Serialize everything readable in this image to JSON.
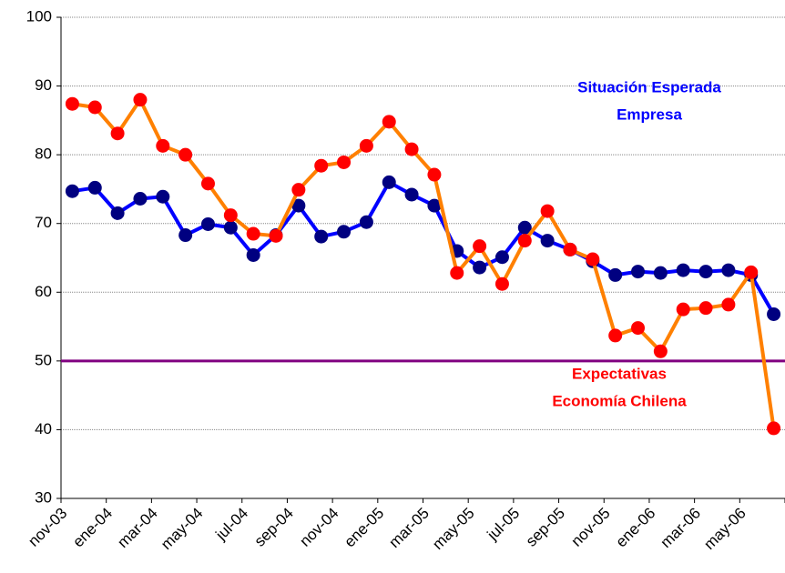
{
  "chart_data": {
    "type": "line",
    "categories": [
      "nov-03",
      null,
      "ene-04",
      null,
      "mar-04",
      null,
      "may-04",
      null,
      "jul-04",
      null,
      "sep-04",
      null,
      "nov-04",
      null,
      "ene-05",
      null,
      "mar-05",
      null,
      "may-05",
      null,
      "jul-05",
      null,
      "sep-05",
      null,
      "nov-05",
      null,
      "ene-06",
      null,
      "mar-06",
      null,
      "may-06",
      null
    ],
    "series": [
      {
        "name": "Situación Esperada Empresa",
        "color": "#0000ff",
        "marker_color": "#000080",
        "values": [
          74.7,
          75.2,
          71.5,
          73.6,
          73.9,
          68.3,
          69.9,
          69.4,
          65.4,
          68.3,
          72.6,
          68.1,
          68.8,
          70.2,
          76.0,
          74.2,
          72.6,
          66.0,
          63.6,
          65.1,
          69.4,
          67.5,
          66.2,
          64.5,
          62.5,
          63.0,
          62.8,
          63.2,
          63.0,
          63.2,
          62.5,
          56.8
        ]
      },
      {
        "name": "Expectativas Economía Chilena",
        "color": "#ff8000",
        "marker_color": "#ff0000",
        "values": [
          87.4,
          86.9,
          83.1,
          88.0,
          81.3,
          80.0,
          75.8,
          71.2,
          68.5,
          68.2,
          74.9,
          78.4,
          78.9,
          81.3,
          84.8,
          80.8,
          77.1,
          62.8,
          66.7,
          61.2,
          67.5,
          71.8,
          66.2,
          64.8,
          53.7,
          54.8,
          51.4,
          57.5,
          57.7,
          58.2,
          62.9,
          40.2
        ]
      }
    ],
    "annotations": [
      {
        "lines": [
          "Situación Esperada",
          "Empresa"
        ],
        "color": "#0000ff"
      },
      {
        "lines": [
          "Expectativas",
          "Economía Chilena"
        ],
        "color": "#ff0000"
      }
    ],
    "reference_line": {
      "value": 50,
      "color": "#800080"
    },
    "ylim": [
      30,
      100
    ],
    "yticks": [
      30,
      40,
      50,
      60,
      70,
      80,
      90,
      100
    ],
    "grid": true
  }
}
